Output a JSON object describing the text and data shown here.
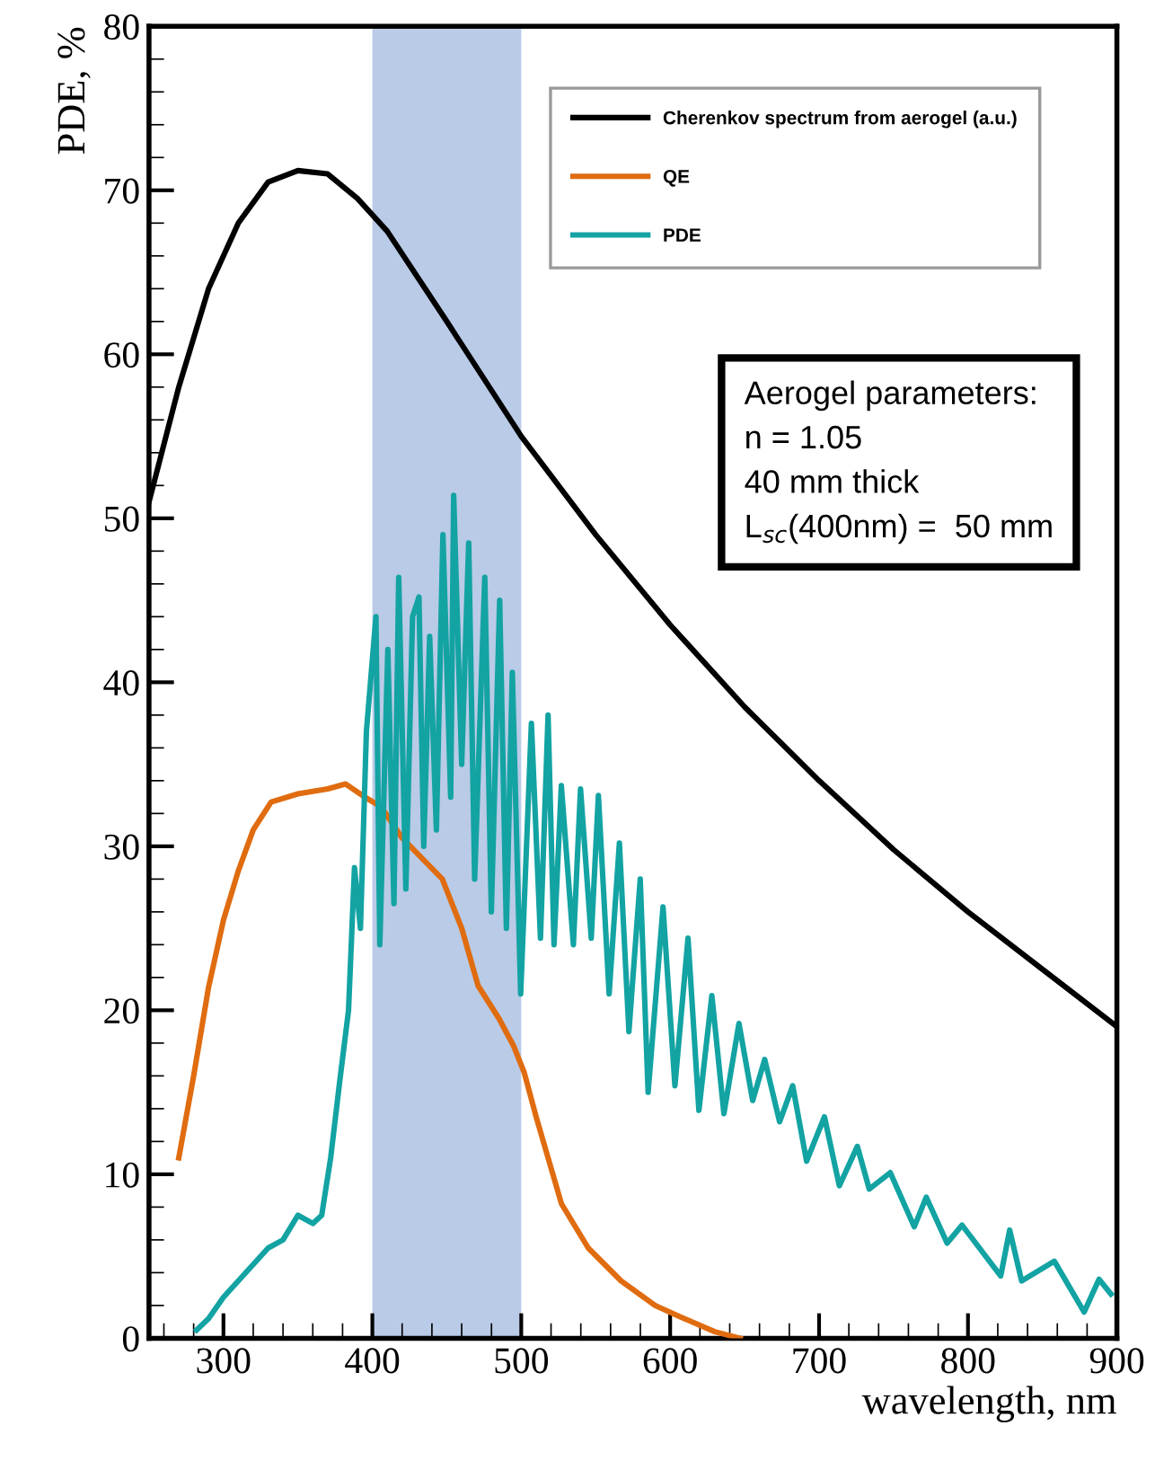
{
  "chart_data": {
    "type": "line",
    "xlabel": "wavelength, nm",
    "ylabel": "PDE, %",
    "xlim": [
      250,
      900
    ],
    "xticks": [
      300,
      400,
      500,
      600,
      700,
      800,
      900
    ],
    "ylim": [
      0,
      80
    ],
    "yticks": [
      0,
      10,
      20,
      30,
      40,
      50,
      60,
      70,
      80
    ],
    "grid": false,
    "legend": "top right",
    "marker": "none",
    "line_style": "solid",
    "bands": [
      {
        "axis": "x",
        "from": 400,
        "to": 500,
        "color": "#b9cbe6"
      }
    ],
    "annotations": [
      "Aerogel parameters:\nn = 1.05\n40 mm thick\nL$_{sc}$(400nm) =  50 mm"
    ],
    "series": [
      {
        "name": "Cherenkov spectrum from aerogel (a.u.)",
        "color": "#000000",
        "x": [
          250,
          270,
          290,
          310,
          330,
          350,
          370,
          390,
          410,
          450,
          500,
          550,
          600,
          650,
          700,
          750,
          800,
          850,
          900
        ],
        "values": [
          51,
          58,
          64,
          68,
          70.5,
          71.2,
          71,
          69.5,
          67.5,
          62,
          55,
          49,
          43.5,
          38.5,
          34,
          29.8,
          26,
          22.5,
          19
        ]
      },
      {
        "name": "QE",
        "color": "#e06c10",
        "x": [
          270,
          280,
          290,
          300,
          310,
          320,
          332,
          350,
          370,
          382,
          395,
          406,
          420,
          447,
          460,
          471,
          485,
          495,
          502,
          510,
          527,
          545,
          567,
          590,
          607,
          630,
          647
        ],
        "values": [
          11,
          16,
          21.4,
          25.5,
          28.5,
          31,
          32.7,
          33.2,
          33.5,
          33.8,
          33,
          32.4,
          30.5,
          28,
          25,
          21.5,
          19.5,
          17.8,
          16.2,
          13.5,
          8.2,
          5.5,
          3.5,
          2,
          1.3,
          0.4,
          0
        ]
      },
      {
        "name": "PDE",
        "color": "#13a3a3",
        "x": [
          282,
          290,
          300,
          310,
          320,
          330,
          340,
          350,
          360,
          366,
          372,
          378,
          384,
          388,
          392,
          396,
          402.4,
          405,
          410.4,
          414.5,
          417.7,
          422.5,
          427,
          431.3,
          434.5,
          438.5,
          443,
          447.4,
          452.6,
          454.6,
          460,
          464.7,
          468.7,
          475.5,
          479.9,
          485.5,
          490,
          494,
          499.6,
          506.8,
          512.9,
          518,
          522,
          526.9,
          535,
          539.8,
          547,
          551.8,
          559,
          565.9,
          572.3,
          579.9,
          585.2,
          595.2,
          603.2,
          612,
          619.3,
          628,
          636.1,
          646.2,
          655.4,
          663.5,
          673.5,
          682.3,
          691.6,
          703.6,
          713.6,
          725.7,
          733.7,
          747.8,
          763.9,
          772,
          786,
          796,
          822,
          828,
          836,
          858,
          878,
          888,
          896
        ],
        "values": [
          0.5,
          1.2,
          2.5,
          3.5,
          4.5,
          5.5,
          6,
          7.5,
          7,
          7.5,
          11,
          15.6,
          20,
          28.7,
          25,
          37,
          44,
          24,
          42,
          26.5,
          46.4,
          27.4,
          44,
          45.2,
          30,
          42.8,
          31,
          49,
          33,
          51.4,
          35,
          48.5,
          28,
          46.4,
          26,
          45,
          25,
          40.6,
          21,
          37.5,
          24.4,
          38,
          24,
          33.7,
          24,
          33.5,
          24.4,
          33.1,
          21,
          30.2,
          18.7,
          28,
          15,
          26.3,
          15.4,
          24.4,
          13.9,
          20.9,
          13.7,
          19.2,
          14.5,
          17,
          13.2,
          15.4,
          10.8,
          13.5,
          9.3,
          11.7,
          9.1,
          10.1,
          6.8,
          8.6,
          5.8,
          6.9,
          3.8,
          6.6,
          3.5,
          4.7,
          1.6,
          3.6,
          2.7
        ]
      }
    ]
  }
}
